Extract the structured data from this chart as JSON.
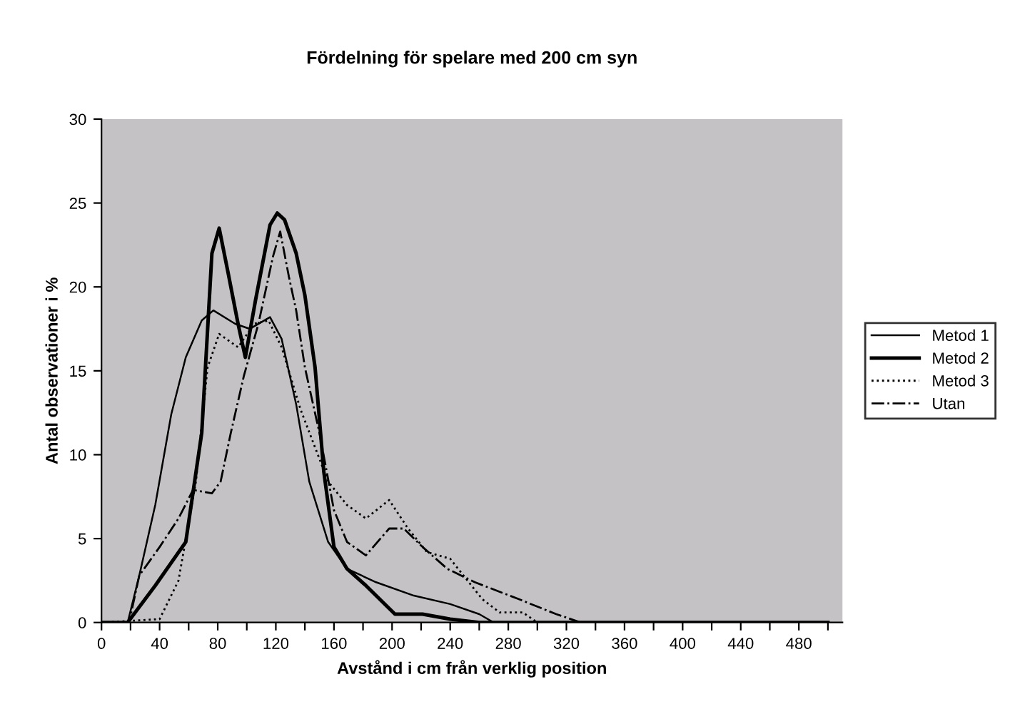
{
  "chart_data": {
    "type": "line",
    "title": "Fördelning för spelare med 200 cm syn",
    "xlabel": "Avstånd i cm från verklig position",
    "ylabel": "Antal observationer i %",
    "xlim": [
      0,
      510
    ],
    "ylim": [
      0,
      30
    ],
    "xticks": [
      0,
      {
        "value": 20,
        "label": null
      },
      40,
      {
        "value": 60,
        "label": null
      },
      80,
      {
        "value": 100,
        "label": null
      },
      120,
      {
        "value": 140,
        "label": null
      },
      160,
      {
        "value": 180,
        "label": null
      },
      200,
      {
        "value": 220,
        "label": null
      },
      240,
      {
        "value": 260,
        "label": null
      },
      280,
      {
        "value": 300,
        "label": null
      },
      320,
      {
        "value": 340,
        "label": null
      },
      360,
      {
        "value": 380,
        "label": null
      },
      400,
      {
        "value": 420,
        "label": null
      },
      440,
      {
        "value": 460,
        "label": null
      },
      480,
      {
        "value": 500,
        "label": null
      }
    ],
    "yticks": [
      0,
      5,
      10,
      15,
      20,
      25,
      30
    ],
    "grid": false,
    "legend": "right",
    "marker": "none",
    "series": [
      {
        "name": "Metod 1",
        "color": "#000000",
        "line_style": "solid",
        "x": [
          0,
          18,
          26,
          37,
          48,
          58,
          69,
          77,
          92,
          102,
          116,
          124,
          134,
          143,
          156,
          169,
          189,
          215,
          240,
          260,
          270,
          500
        ],
        "values": [
          0,
          0,
          2.8,
          7,
          12.4,
          15.8,
          18,
          18.6,
          17.8,
          17.5,
          18.2,
          16.9,
          13,
          8.4,
          4.8,
          3.2,
          2.4,
          1.6,
          1.1,
          0.5,
          0,
          0
        ]
      },
      {
        "name": "Metod 2",
        "color": "#000000",
        "line_style": "solid",
        "x": [
          0,
          18,
          37,
          58,
          69,
          76,
          81,
          87,
          94,
          99,
          106,
          116,
          121,
          126,
          134,
          140,
          147,
          153,
          160,
          169,
          182,
          202,
          221,
          240,
          260,
          500
        ],
        "values": [
          0,
          0,
          2.2,
          4.8,
          11.3,
          22,
          23.5,
          20.9,
          17.8,
          15.8,
          19.2,
          23.7,
          24.4,
          24,
          22,
          19.5,
          15.2,
          9,
          4.5,
          3.2,
          2.2,
          0.5,
          0.5,
          0.2,
          0,
          0
        ]
      },
      {
        "name": "Metod 3",
        "color": "#000000",
        "line_style": "dotted",
        "x": [
          0,
          40,
          53,
          65,
          73,
          81,
          94,
          105,
          115,
          124,
          137,
          156,
          169,
          182,
          198,
          211,
          224,
          240,
          262,
          274,
          290,
          300,
          500
        ],
        "values": [
          0,
          0.2,
          2.5,
          8.4,
          15.2,
          17.2,
          16.4,
          17.8,
          18,
          16.4,
          12.7,
          8.4,
          7,
          6.2,
          7.3,
          5.6,
          4.2,
          3.8,
          1.4,
          0.6,
          0.6,
          0,
          0
        ]
      },
      {
        "name": "Utan",
        "color": "#000000",
        "line_style": "dashdot",
        "x": [
          0,
          19,
          26,
          40,
          53,
          63,
          76,
          82,
          89,
          98,
          108,
          118,
          123,
          129,
          134,
          140,
          150,
          160,
          169,
          182,
          198,
          208,
          221,
          238,
          257,
          287,
          313,
          330,
          500
        ],
        "values": [
          0,
          0,
          2.8,
          4.5,
          6.2,
          7.9,
          7.7,
          8.4,
          11.3,
          14.7,
          17.8,
          21.8,
          23.3,
          20.6,
          18.6,
          15.2,
          11.3,
          6.7,
          4.8,
          4,
          5.6,
          5.6,
          4.5,
          3.2,
          2.4,
          1.4,
          0.5,
          0,
          0
        ]
      }
    ]
  }
}
